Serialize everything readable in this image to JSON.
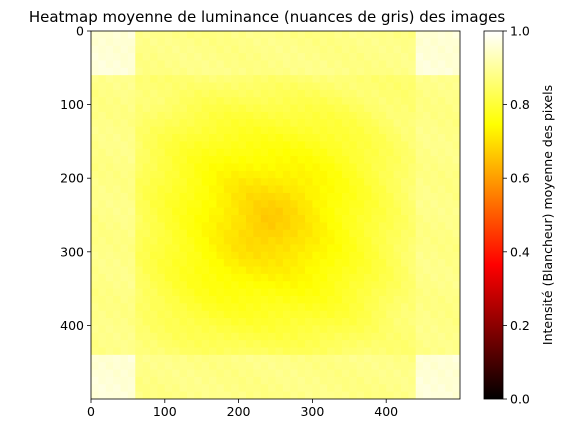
{
  "chart_data": {
    "type": "heatmap",
    "title": "Heatmap moyenne de luminance (nuances de gris) des images",
    "colormap": "hot",
    "grid": false,
    "x_range": [
      0,
      500
    ],
    "y_range": [
      500,
      0
    ],
    "x_ticks": [
      "0",
      "100",
      "200",
      "300",
      "400"
    ],
    "y_ticks": [
      "0",
      "100",
      "200",
      "300",
      "400"
    ],
    "colorbar": {
      "label": "Intensité (Blancheur) moyenne des pixels",
      "range": [
        0.0,
        1.0
      ],
      "ticks": [
        "0.0",
        "0.2",
        "0.4",
        "0.6",
        "0.8",
        "1.0"
      ]
    },
    "pattern": {
      "center": [
        240,
        260
      ],
      "center_value": 0.66,
      "corner_value": 0.96,
      "edge_value": 0.86
    }
  }
}
